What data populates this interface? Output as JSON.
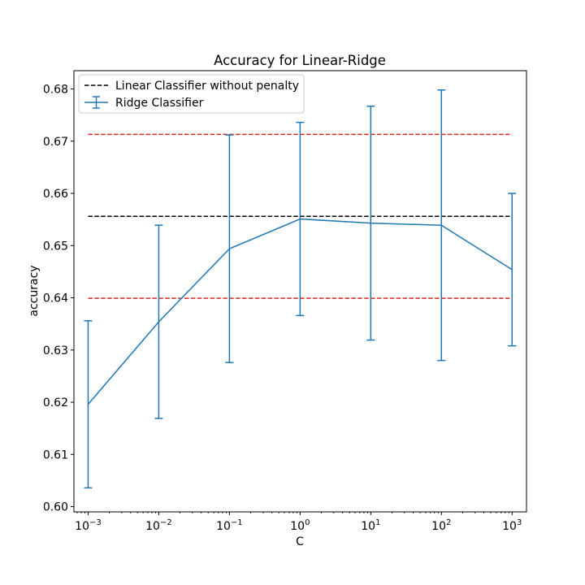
{
  "chart_data": {
    "type": "line",
    "title": "Accuracy for Linear-Ridge",
    "xlabel": "C",
    "ylabel": "accuracy",
    "x_scale": "log",
    "xlim": [
      0.00063,
      1600
    ],
    "ylim": [
      0.599,
      0.6835
    ],
    "x_ticks": [
      {
        "value": 0.001,
        "base": "10",
        "exp": "−3"
      },
      {
        "value": 0.01,
        "base": "10",
        "exp": "−2"
      },
      {
        "value": 0.1,
        "base": "10",
        "exp": "−1"
      },
      {
        "value": 1,
        "base": "10",
        "exp": "0"
      },
      {
        "value": 10,
        "base": "10",
        "exp": "1"
      },
      {
        "value": 100,
        "base": "10",
        "exp": "2"
      },
      {
        "value": 1000,
        "base": "10",
        "exp": "3"
      }
    ],
    "y_ticks": [
      {
        "value": 0.6,
        "label": "0.60"
      },
      {
        "value": 0.61,
        "label": "0.61"
      },
      {
        "value": 0.62,
        "label": "0.62"
      },
      {
        "value": 0.63,
        "label": "0.63"
      },
      {
        "value": 0.64,
        "label": "0.64"
      },
      {
        "value": 0.65,
        "label": "0.65"
      },
      {
        "value": 0.66,
        "label": "0.66"
      },
      {
        "value": 0.67,
        "label": "0.67"
      },
      {
        "value": 0.68,
        "label": "0.68"
      }
    ],
    "grid": false,
    "legend_position": "upper-left",
    "series": [
      {
        "name": "Ridge Classifier",
        "kind": "errorbar",
        "color": "#1f77b4",
        "x": [
          0.001,
          0.01,
          0.1,
          1,
          10,
          100,
          1000
        ],
        "y": [
          0.6196,
          0.6354,
          0.6494,
          0.6551,
          0.6543,
          0.6539,
          0.6454
        ],
        "yerr": [
          0.016,
          0.0185,
          0.0218,
          0.0185,
          0.0224,
          0.0259,
          0.0146
        ]
      }
    ],
    "reference_lines": [
      {
        "name": "Linear Classifier without penalty",
        "y": 0.6556,
        "color": "#000000",
        "style": "dashed",
        "x_range": [
          0.001,
          1000
        ],
        "in_legend": true
      },
      {
        "y": 0.6713,
        "color": "#d62728",
        "style": "dashed",
        "x_range": [
          0.001,
          1000
        ],
        "in_legend": false
      },
      {
        "y": 0.6399,
        "color": "#d62728",
        "style": "dashed",
        "x_range": [
          0.001,
          1000
        ],
        "in_legend": false
      }
    ],
    "legend": [
      {
        "label": "Linear Classifier without penalty",
        "kind": "dashed-line",
        "color": "#000000"
      },
      {
        "label": "Ridge Classifier",
        "kind": "errorbar",
        "color": "#1f77b4"
      }
    ]
  }
}
